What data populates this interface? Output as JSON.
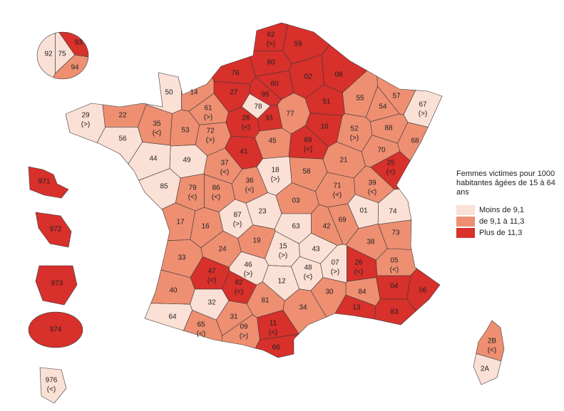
{
  "legend": {
    "title": "Femmes victimes pour 1000 habitantes âgées de 15 à 64 ans",
    "entries": [
      {
        "label": "Moins de 9,1",
        "color": "#fbe0d6"
      },
      {
        "label": "de 9,1 à 11,3",
        "color": "#ee8f72"
      },
      {
        "label": "Plus de 11,3",
        "color": "#d8302b"
      }
    ]
  },
  "departments": [
    {
      "code": "62",
      "note": "(>)",
      "level": 2
    },
    {
      "code": "59",
      "level": 2
    },
    {
      "code": "80",
      "level": 2
    },
    {
      "code": "02",
      "level": 2
    },
    {
      "code": "08",
      "level": 2
    },
    {
      "code": "76",
      "level": 2
    },
    {
      "code": "60",
      "level": 2
    },
    {
      "code": "27",
      "level": 2
    },
    {
      "code": "95",
      "level": 2
    },
    {
      "code": "78",
      "level": 0
    },
    {
      "code": "91",
      "level": 2
    },
    {
      "code": "28",
      "note": "(<)",
      "level": 2
    },
    {
      "code": "77",
      "level": 1
    },
    {
      "code": "51",
      "level": 2
    },
    {
      "code": "10",
      "level": 2
    },
    {
      "code": "55",
      "level": 1
    },
    {
      "code": "57",
      "level": 1
    },
    {
      "code": "54",
      "level": 1
    },
    {
      "code": "67",
      "note": "(>)",
      "level": 0
    },
    {
      "code": "88",
      "level": 1
    },
    {
      "code": "68",
      "level": 1
    },
    {
      "code": "52",
      "note": "(>)",
      "level": 1
    },
    {
      "code": "50",
      "level": 0
    },
    {
      "code": "14",
      "level": 1
    },
    {
      "code": "61",
      "note": "(>)",
      "level": 1
    },
    {
      "code": "29",
      "note": "(>)",
      "level": 0
    },
    {
      "code": "22",
      "level": 1
    },
    {
      "code": "35",
      "note": "(<)",
      "level": 1
    },
    {
      "code": "53",
      "level": 1
    },
    {
      "code": "72",
      "note": "(>)",
      "level": 1
    },
    {
      "code": "56",
      "level": 0
    },
    {
      "code": "45",
      "level": 1
    },
    {
      "code": "41",
      "level": 2
    },
    {
      "code": "89",
      "note": "(<)",
      "level": 2
    },
    {
      "code": "21",
      "level": 1
    },
    {
      "code": "70",
      "level": 1
    },
    {
      "code": "25",
      "note": "(<)",
      "level": 2
    },
    {
      "code": "44",
      "level": 0
    },
    {
      "code": "49",
      "level": 0
    },
    {
      "code": "37",
      "note": "(<)",
      "level": 1
    },
    {
      "code": "18",
      "note": "(>)",
      "level": 0
    },
    {
      "code": "58",
      "level": 1
    },
    {
      "code": "36",
      "note": "(<)",
      "level": 1
    },
    {
      "code": "71",
      "note": "(<)",
      "level": 1
    },
    {
      "code": "39",
      "note": "(<)",
      "level": 1
    },
    {
      "code": "85",
      "level": 0
    },
    {
      "code": "79",
      "note": "(<)",
      "level": 1
    },
    {
      "code": "86",
      "note": "(<)",
      "level": 1
    },
    {
      "code": "03",
      "level": 1
    },
    {
      "code": "01",
      "level": 0
    },
    {
      "code": "74",
      "level": 0
    },
    {
      "code": "17",
      "level": 1
    },
    {
      "code": "87",
      "note": "(>)",
      "level": 0
    },
    {
      "code": "23",
      "level": 0
    },
    {
      "code": "16",
      "level": 1
    },
    {
      "code": "63",
      "level": 0
    },
    {
      "code": "42",
      "level": 1
    },
    {
      "code": "69",
      "level": 1
    },
    {
      "code": "73",
      "level": 1
    },
    {
      "code": "24",
      "level": 1
    },
    {
      "code": "19",
      "level": 1
    },
    {
      "code": "15",
      "note": "(>)",
      "level": 0
    },
    {
      "code": "43",
      "level": 0
    },
    {
      "code": "38",
      "level": 1
    },
    {
      "code": "33",
      "level": 1
    },
    {
      "code": "46",
      "note": "(>)",
      "level": 0
    },
    {
      "code": "48",
      "note": "(<)",
      "level": 0
    },
    {
      "code": "07",
      "note": "(>)",
      "level": 0
    },
    {
      "code": "26",
      "note": "(<)",
      "level": 2
    },
    {
      "code": "05",
      "note": "(<)",
      "level": 1
    },
    {
      "code": "47",
      "note": "(<)",
      "level": 2
    },
    {
      "code": "12",
      "level": 0
    },
    {
      "code": "04",
      "level": 2
    },
    {
      "code": "06",
      "level": 2
    },
    {
      "code": "40",
      "level": 1
    },
    {
      "code": "82",
      "note": "(<)",
      "level": 2
    },
    {
      "code": "84",
      "level": 1
    },
    {
      "code": "30",
      "level": 1
    },
    {
      "code": "81",
      "level": 1
    },
    {
      "code": "32",
      "level": 0
    },
    {
      "code": "13",
      "level": 2
    },
    {
      "code": "83",
      "level": 2
    },
    {
      "code": "34",
      "level": 1
    },
    {
      "code": "31",
      "level": 1
    },
    {
      "code": "64",
      "level": 0
    },
    {
      "code": "65",
      "note": "(<)",
      "level": 1
    },
    {
      "code": "11",
      "note": "(<)",
      "level": 2
    },
    {
      "code": "09",
      "note": "(>)",
      "level": 1
    },
    {
      "code": "66",
      "level": 2
    },
    {
      "code": "2B",
      "note": "(<)",
      "level": 1
    },
    {
      "code": "2A",
      "level": 0
    },
    {
      "code": "93",
      "level": 2
    },
    {
      "code": "75",
      "level": 0
    },
    {
      "code": "92",
      "level": 0
    },
    {
      "code": "94",
      "level": 1
    },
    {
      "code": "971",
      "level": 2
    },
    {
      "code": "972",
      "level": 2
    },
    {
      "code": "973",
      "level": 2
    },
    {
      "code": "974",
      "level": 2
    },
    {
      "code": "976",
      "note": "(<)",
      "level": 0
    }
  ]
}
